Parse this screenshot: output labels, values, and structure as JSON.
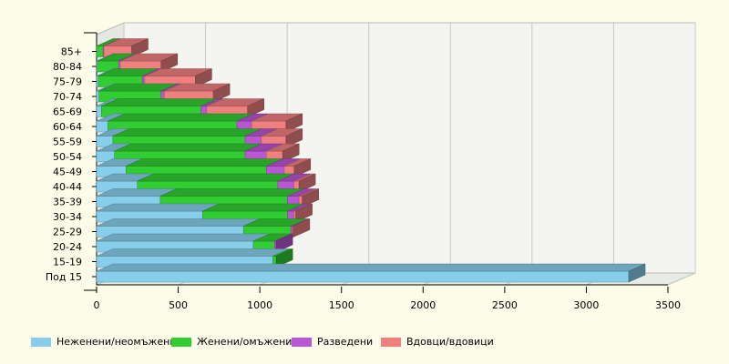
{
  "chart_data": {
    "type": "bar",
    "orientation": "horizontal",
    "stacked": true,
    "style": "3d",
    "categories": [
      "Под 15",
      "15-19",
      "20-24",
      "25-29",
      "30-34",
      "35-39",
      "40-44",
      "45-49",
      "50-54",
      "55-59",
      "60-64",
      "65-69",
      "70-74",
      "75-79",
      "80-84",
      "85+"
    ],
    "series": [
      {
        "name": "Неженени/неомъжени",
        "color": "#87ceeb",
        "values": [
          3260,
          1080,
          960,
          900,
          650,
          390,
          250,
          180,
          110,
          100,
          70,
          30,
          15,
          10,
          5,
          0
        ]
      },
      {
        "name": "Женени/омъжени",
        "color": "#32cd32",
        "values": [
          0,
          20,
          130,
          290,
          520,
          780,
          860,
          860,
          800,
          810,
          790,
          610,
          380,
          270,
          130,
          40
        ]
      },
      {
        "name": "Разведени",
        "color": "#ba55d3",
        "values": [
          0,
          0,
          10,
          10,
          40,
          70,
          100,
          110,
          130,
          100,
          90,
          35,
          20,
          15,
          10,
          5
        ]
      },
      {
        "name": "Вдовци/вдовици",
        "color": "#f08080",
        "values": [
          0,
          0,
          0,
          5,
          10,
          20,
          30,
          60,
          100,
          150,
          210,
          250,
          300,
          310,
          250,
          170
        ]
      }
    ],
    "xlim": [
      0,
      3500
    ],
    "xticks": [
      0,
      500,
      1000,
      1500,
      2000,
      2500,
      3000,
      3500
    ],
    "grid": true,
    "legend_position": "bottom",
    "title": "",
    "xlabel": "",
    "ylabel": ""
  }
}
